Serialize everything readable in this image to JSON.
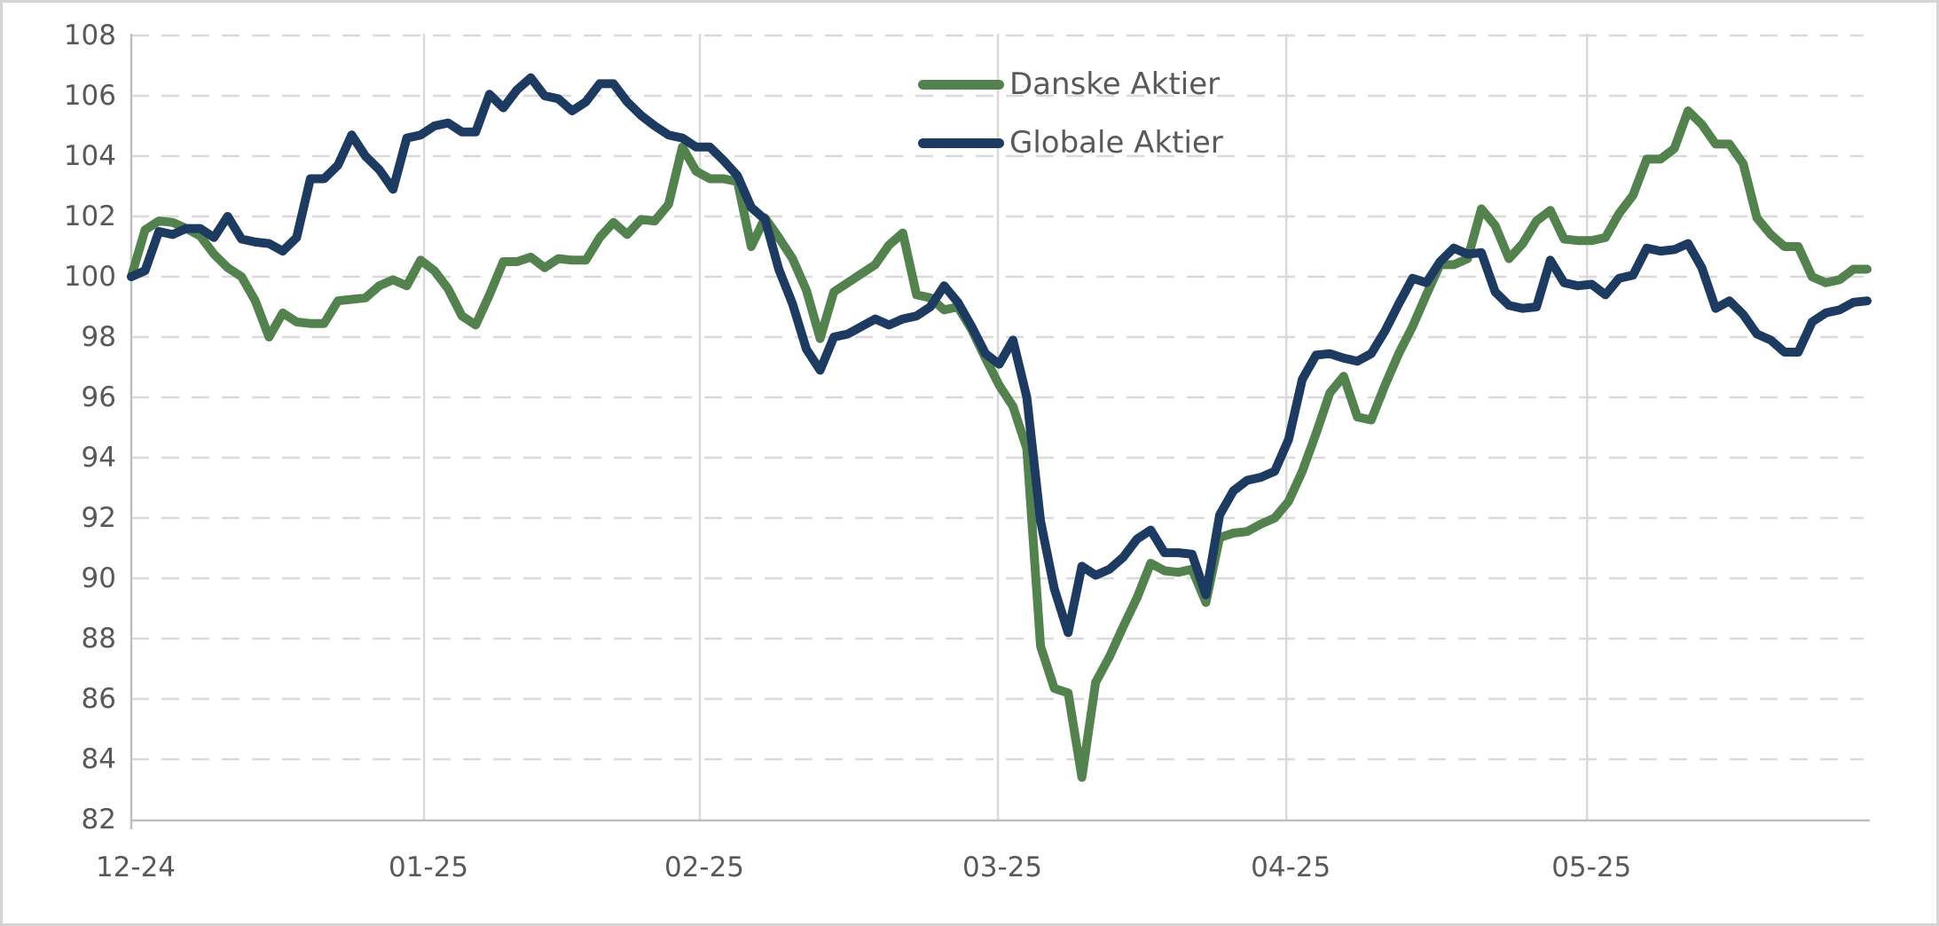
{
  "chart_data": {
    "type": "line",
    "title": "",
    "xlabel": "",
    "ylabel": "",
    "ylim": [
      82,
      108
    ],
    "y_ticks": [
      82,
      84,
      86,
      88,
      90,
      92,
      94,
      96,
      98,
      100,
      102,
      104,
      106,
      108
    ],
    "x_tick_labels": [
      "12-24",
      "01-25",
      "02-25",
      "03-25",
      "04-25",
      "05-25"
    ],
    "x_tick_positions": [
      0,
      21.25,
      41.27,
      62.91,
      83.84,
      105.67
    ],
    "x_max_index": 126,
    "grid": {
      "horizontal": "dashed",
      "vertical": "solid"
    },
    "legend_position": "inside-top-right",
    "axis_color": "#bfbfbf",
    "grid_color": "#d9d9d9",
    "tick_text_color": "#595959",
    "series": [
      {
        "name": "Danske Aktier",
        "color": "#53824F",
        "values": [
          100.0,
          101.55,
          101.85,
          101.8,
          101.6,
          101.35,
          100.75,
          100.3,
          100.0,
          99.2,
          98.0,
          98.8,
          98.5,
          98.45,
          98.45,
          99.2,
          99.25,
          99.3,
          99.7,
          99.9,
          99.7,
          100.55,
          100.2,
          99.6,
          98.7,
          98.4,
          99.4,
          100.5,
          100.5,
          100.65,
          100.3,
          100.6,
          100.55,
          100.55,
          101.3,
          101.8,
          101.4,
          101.9,
          101.85,
          102.4,
          104.3,
          103.5,
          103.25,
          103.25,
          103.15,
          101.0,
          101.95,
          101.3,
          100.6,
          99.55,
          97.95,
          99.5,
          99.8,
          100.1,
          100.4,
          101.05,
          101.45,
          99.4,
          99.3,
          98.9,
          99.0,
          98.25,
          97.3,
          96.4,
          95.7,
          94.3,
          87.75,
          86.35,
          86.2,
          83.4,
          86.55,
          87.4,
          88.4,
          89.35,
          90.5,
          90.25,
          90.2,
          90.3,
          89.2,
          91.35,
          91.5,
          91.55,
          91.8,
          92.0,
          92.55,
          93.55,
          94.8,
          96.15,
          96.7,
          95.35,
          95.25,
          96.4,
          97.45,
          98.35,
          99.4,
          100.4,
          100.4,
          100.6,
          102.25,
          101.7,
          100.6,
          101.1,
          101.85,
          102.2,
          101.25,
          101.2,
          101.2,
          101.3,
          102.1,
          102.7,
          103.9,
          103.9,
          104.25,
          105.5,
          105.05,
          104.4,
          104.4,
          103.75,
          101.95,
          101.4,
          101.0,
          101.0,
          100.0,
          99.8,
          99.9,
          100.25,
          100.25
        ]
      },
      {
        "name": "Globale Aktier",
        "color": "#1D3A60",
        "values": [
          100.0,
          100.2,
          101.5,
          101.4,
          101.6,
          101.6,
          101.3,
          102.0,
          101.25,
          101.15,
          101.1,
          100.85,
          101.3,
          103.25,
          103.25,
          103.7,
          104.7,
          104.0,
          103.55,
          102.9,
          104.6,
          104.7,
          105.0,
          105.1,
          104.8,
          104.8,
          106.05,
          105.6,
          106.2,
          106.6,
          106.0,
          105.9,
          105.5,
          105.8,
          106.4,
          106.4,
          105.8,
          105.35,
          105.0,
          104.7,
          104.6,
          104.3,
          104.3,
          103.85,
          103.35,
          102.3,
          101.9,
          100.25,
          99.1,
          97.6,
          96.9,
          98.0,
          98.1,
          98.35,
          98.6,
          98.4,
          98.6,
          98.7,
          99.0,
          99.7,
          99.15,
          98.35,
          97.45,
          97.1,
          97.9,
          96.0,
          91.9,
          89.65,
          88.2,
          90.4,
          90.1,
          90.3,
          90.7,
          91.3,
          91.6,
          90.85,
          90.85,
          90.8,
          89.45,
          92.1,
          92.9,
          93.25,
          93.35,
          93.55,
          94.6,
          96.6,
          97.4,
          97.45,
          97.3,
          97.2,
          97.45,
          98.2,
          99.1,
          99.95,
          99.8,
          100.5,
          100.95,
          100.75,
          100.8,
          99.5,
          99.05,
          98.95,
          99.0,
          100.55,
          99.8,
          99.7,
          99.75,
          99.4,
          99.95,
          100.05,
          100.95,
          100.85,
          100.9,
          101.1,
          100.3,
          98.95,
          99.2,
          98.75,
          98.1,
          97.9,
          97.5,
          97.5,
          98.5,
          98.8,
          98.9,
          99.15,
          99.2
        ]
      }
    ]
  },
  "legend": {
    "items": [
      {
        "label": "Danske Aktier"
      },
      {
        "label": "Globale Aktier"
      }
    ]
  }
}
